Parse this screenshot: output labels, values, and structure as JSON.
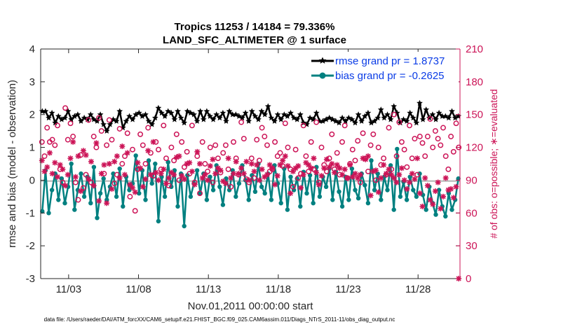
{
  "chart_data": {
    "type": "line",
    "title": "Tropics 11253 / 14184 = 79.336%",
    "subtitle": "LAND_SFC_ALTIMETER @ 1 surface",
    "xlabel": "Nov.01,2011 00:00:00 start",
    "ylabel": "rmse and bias (model - observation)",
    "y2label": "# of obs: o=possible; ∗=evaluated",
    "ylim": [
      -3,
      4
    ],
    "y2lim": [
      0,
      210
    ],
    "xlim": [
      1.0,
      31.0
    ],
    "yticks": [
      "4",
      "3",
      "2",
      "1",
      "0",
      "-1",
      "-2",
      "-3"
    ],
    "y2ticks": [
      "210",
      "180",
      "150",
      "120",
      "90",
      "60",
      "30",
      "0"
    ],
    "xticks": [
      {
        "label": "11/03",
        "x": 3
      },
      {
        "label": "11/08",
        "x": 8
      },
      {
        "label": "11/13",
        "x": 13
      },
      {
        "label": "11/18",
        "x": 18
      },
      {
        "label": "11/23",
        "x": 23
      },
      {
        "label": "11/28",
        "x": 28
      }
    ],
    "legend_position": "top-right",
    "series": [
      {
        "name": "rmse grand pr = 1.8737",
        "axis": "left",
        "color": "#000000",
        "values": [
          2.1,
          2.1,
          1.9,
          2.05,
          1.75,
          1.95,
          1.85,
          1.9,
          2.1,
          1.85,
          1.95,
          2.0,
          1.8,
          1.9,
          1.85,
          2.0,
          1.85,
          1.8,
          2.0,
          1.7,
          1.5,
          1.7,
          1.85,
          1.8,
          2.1,
          1.6,
          1.8,
          1.95,
          1.85,
          2.0,
          2.05,
          1.95,
          2.0,
          1.8,
          1.7,
          1.9,
          2.2,
          2.05,
          1.95,
          2.1,
          2.05,
          1.85,
          2.1,
          1.9,
          1.75,
          2.1,
          2.05,
          2.0,
          1.8,
          2.1,
          1.85,
          2.1,
          1.95,
          1.85,
          2.0,
          1.9,
          2.05,
          1.8,
          2.1,
          2.0,
          2.0,
          1.95,
          1.9,
          2.05,
          1.8,
          2.1,
          1.95,
          1.85,
          2.1,
          2.0,
          2.25,
          1.9,
          1.8,
          2.0,
          1.85,
          2.0,
          1.95,
          2.05,
          1.9,
          1.85,
          2.0,
          1.75,
          1.7,
          1.9,
          1.85,
          2.05,
          1.8,
          1.8,
          1.85,
          1.9,
          1.85,
          1.8,
          1.75,
          1.9,
          1.8,
          1.9,
          1.85,
          1.75,
          2.0,
          1.8,
          1.95,
          2.05,
          1.75,
          1.8,
          1.9,
          2.15,
          1.9,
          2.0,
          1.85,
          2.25,
          2.05,
          1.75,
          1.85,
          1.8,
          2.05,
          1.9,
          1.75,
          2.35,
          1.85,
          2.15,
          1.9,
          2.0,
          1.85,
          2.05,
          1.95,
          1.95,
          1.9,
          2.1,
          1.9,
          1.95
        ]
      },
      {
        "name": "bias grand pr = -0.2625",
        "axis": "left",
        "color": "#008080",
        "values": [
          -0.95,
          0.3,
          -1.0,
          -0.3,
          0.2,
          -0.6,
          0.05,
          -0.7,
          -0.2,
          0.5,
          -0.9,
          -0.3,
          0.2,
          -0.5,
          0.1,
          -0.7,
          0.4,
          -1.15,
          -0.4,
          0.05,
          -0.6,
          -0.2,
          0.2,
          -0.5,
          0.35,
          -0.8,
          0.1,
          -0.3,
          -0.1,
          0.75,
          -0.4,
          0.3,
          -0.6,
          0.6,
          -0.1,
          0.5,
          -1.25,
          0.1,
          -0.5,
          0.55,
          -0.2,
          0.3,
          -0.8,
          0.2,
          -1.4,
          0.15,
          -0.5,
          -0.1,
          0.3,
          -0.4,
          0.2,
          -0.6,
          0.1,
          -0.3,
          0.45,
          -0.2,
          -0.75,
          0.05,
          -0.3,
          0.3,
          -0.5,
          -0.1,
          0.45,
          0.0,
          -0.6,
          0.15,
          -0.35,
          0.5,
          -0.2,
          -0.4,
          0.2,
          -0.6,
          0.45,
          -0.1,
          -0.7,
          0.35,
          -0.9,
          0.1,
          -0.3,
          0.05,
          -0.8,
          0.25,
          -0.4,
          0.15,
          -0.7,
          0.4,
          -0.5,
          0.1,
          -0.2,
          0.35,
          -0.6,
          0.25,
          -0.35,
          -0.8,
          0.1,
          -0.6,
          0.35,
          -0.3,
          -0.55,
          0.2,
          -0.15,
          -0.7,
          0.6,
          -0.3,
          0.2,
          -0.6,
          0.1,
          -0.3,
          0.45,
          -0.9,
          0.95,
          -0.5,
          -0.05,
          -0.6,
          0.1,
          -0.3,
          -0.5,
          0.2,
          -0.45,
          -0.9,
          -0.2,
          -0.7,
          -1.05,
          -0.3,
          -0.8,
          -1.1,
          -0.4,
          -0.9,
          -0.6,
          0.05
        ]
      },
      {
        "name": "# possible obs",
        "axis": "right",
        "color": "#cc1457",
        "marker": "o",
        "values": [
          125,
          112,
          138,
          125,
          127,
          122,
          140,
          100,
          88,
          156,
          127,
          142,
          130,
          88,
          72,
          113,
          83,
          95,
          145,
          88,
          130,
          120,
          147,
          135,
          96,
          122,
          145,
          127,
          87,
          95,
          137,
          105,
          112,
          133,
          75,
          118,
          62,
          100,
          132,
          122,
          105,
          138,
          115,
          94,
          125,
          118,
          100,
          140,
          110,
          85,
          120,
          108,
          132,
          90,
          125,
          102,
          116,
          96,
          140,
          88,
          112,
          78,
          125,
          105,
          98,
          120,
          88,
          122,
          110,
          97,
          115,
          122,
          100,
          84,
          125,
          110,
          95,
          143,
          128,
          91,
          88,
          110,
          92,
          127,
          108,
          138,
          130,
          122,
          98,
          100,
          125,
          112,
          115,
          103,
          142,
          120,
          100,
          84,
          118,
          92,
          96,
          140,
          112,
          98,
          125,
          100,
          143,
          88,
          120,
          104,
          98,
          110,
          132,
          100,
          115,
          95,
          125,
          140,
          92,
          105,
          118,
          108,
          126,
          88,
          133,
          110,
          98,
          122,
          132,
          90,
          120,
          104,
          110,
          95,
          138,
          100,
          150,
          112,
          143,
          125,
          118,
          102,
          140,
          110,
          128,
          95,
          130,
          124,
          112,
          130,
          146,
          120,
          135,
          128,
          122,
          138,
          112,
          100,
          130,
          116,
          142,
          120
        ]
      },
      {
        "name": "# evaluated obs",
        "axis": "right",
        "color": "#cc1457",
        "marker": "*",
        "values": [
          108,
          98,
          102,
          115,
          96,
          106,
          93,
          104,
          100,
          85,
          95,
          110,
          125,
          93,
          112,
          80,
          117,
          113,
          91,
          107,
          85,
          124,
          71,
          96,
          104,
          69,
          105,
          82,
          107,
          112,
          92,
          121,
          95,
          115,
          86,
          83,
          79,
          106,
          101,
          84,
          91,
          117,
          95,
          125,
          97,
          90,
          96,
          100,
          87,
          92,
          97,
          95,
          111,
          112,
          94,
          91,
          105,
          106,
          98,
          86,
          116,
          105,
          92,
          95,
          90,
          103,
          109,
          96,
          101,
          99,
          89,
          87,
          110,
          92,
          96,
          107,
          96,
          101,
          96,
          107,
          90,
          105,
          98,
          104,
          90,
          100,
          93,
          95,
          104,
          101,
          86,
          94,
          104,
          108,
          112,
          103,
          78,
          98,
          101,
          103,
          83,
          95,
          106,
          104,
          101,
          110,
          97,
          86,
          94,
          101,
          109,
          102,
          105,
          97,
          104,
          101,
          95,
          100,
          92,
          104,
          93,
          96,
          92,
          95,
          110,
          109,
          112,
          76,
          98,
          99,
          79,
          92,
          104,
          96,
          100,
          95,
          92,
          88,
          95,
          101,
          90,
          82,
          88,
          96,
          91,
          110,
          78,
          66,
          92,
          85,
          72,
          68,
          80,
          88,
          64,
          75,
          92,
          81,
          82,
          74,
          84,
          0
        ]
      }
    ]
  },
  "footer": {
    "data_file": "data file: /Users/raeder/DAI/ATM_forcXX/CAM6_setup/f.e21.FHIST_BGC.f09_025.CAM6assim.011/Diags_NTrS_2011-11/obs_diag_output.nc"
  }
}
